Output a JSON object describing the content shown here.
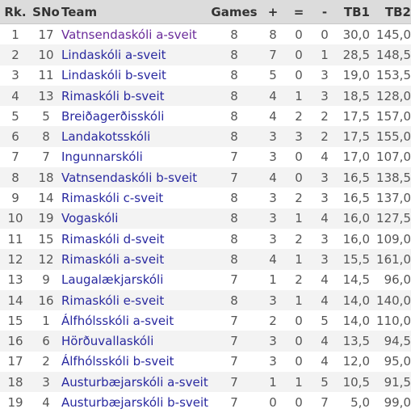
{
  "columns": {
    "rank": "Rk.",
    "sno": "SNo",
    "team": "Team",
    "games": "Games",
    "wins": "+",
    "draws": "=",
    "losses": "-",
    "tb1": "TB1",
    "tb2": "TB2"
  },
  "rows": [
    {
      "rank": "1",
      "sno": "17",
      "team": "Vatnsendaskóli a-sveit",
      "games": "8",
      "wins": "8",
      "draws": "0",
      "losses": "0",
      "tb1": "30,0",
      "tb2": "145,0"
    },
    {
      "rank": "2",
      "sno": "10",
      "team": "Lindaskóli a-sveit",
      "games": "8",
      "wins": "7",
      "draws": "0",
      "losses": "1",
      "tb1": "28,5",
      "tb2": "148,5"
    },
    {
      "rank": "3",
      "sno": "11",
      "team": "Lindaskóli b-sveit",
      "games": "8",
      "wins": "5",
      "draws": "0",
      "losses": "3",
      "tb1": "19,0",
      "tb2": "153,5"
    },
    {
      "rank": "4",
      "sno": "13",
      "team": "Rimaskóli b-sveit",
      "games": "8",
      "wins": "4",
      "draws": "1",
      "losses": "3",
      "tb1": "18,5",
      "tb2": "128,0"
    },
    {
      "rank": "5",
      "sno": "5",
      "team": "Breiðagerðisskóli",
      "games": "8",
      "wins": "4",
      "draws": "2",
      "losses": "2",
      "tb1": "17,5",
      "tb2": "157,0"
    },
    {
      "rank": "6",
      "sno": "8",
      "team": "Landakotsskóli",
      "games": "8",
      "wins": "3",
      "draws": "3",
      "losses": "2",
      "tb1": "17,5",
      "tb2": "155,0"
    },
    {
      "rank": "7",
      "sno": "7",
      "team": "Ingunnarskóli",
      "games": "7",
      "wins": "3",
      "draws": "0",
      "losses": "4",
      "tb1": "17,0",
      "tb2": "107,0"
    },
    {
      "rank": "8",
      "sno": "18",
      "team": "Vatnsendaskóli b-sveit",
      "games": "7",
      "wins": "4",
      "draws": "0",
      "losses": "3",
      "tb1": "16,5",
      "tb2": "138,5"
    },
    {
      "rank": "9",
      "sno": "14",
      "team": "Rimaskóli c-sveit",
      "games": "8",
      "wins": "3",
      "draws": "2",
      "losses": "3",
      "tb1": "16,5",
      "tb2": "137,0"
    },
    {
      "rank": "10",
      "sno": "19",
      "team": "Vogaskóli",
      "games": "8",
      "wins": "3",
      "draws": "1",
      "losses": "4",
      "tb1": "16,0",
      "tb2": "127,5"
    },
    {
      "rank": "11",
      "sno": "15",
      "team": "Rimaskóli d-sveit",
      "games": "8",
      "wins": "3",
      "draws": "2",
      "losses": "3",
      "tb1": "16,0",
      "tb2": "109,0"
    },
    {
      "rank": "12",
      "sno": "12",
      "team": "Rimaskóli a-sveit",
      "games": "8",
      "wins": "4",
      "draws": "1",
      "losses": "3",
      "tb1": "15,5",
      "tb2": "161,0"
    },
    {
      "rank": "13",
      "sno": "9",
      "team": "Laugalækjarskóli",
      "games": "7",
      "wins": "1",
      "draws": "2",
      "losses": "4",
      "tb1": "14,5",
      "tb2": "96,0"
    },
    {
      "rank": "14",
      "sno": "16",
      "team": "Rimaskóli e-sveit",
      "games": "8",
      "wins": "3",
      "draws": "1",
      "losses": "4",
      "tb1": "14,0",
      "tb2": "140,0"
    },
    {
      "rank": "15",
      "sno": "1",
      "team": "Álfhólsskóli a-sveit",
      "games": "7",
      "wins": "2",
      "draws": "0",
      "losses": "5",
      "tb1": "14,0",
      "tb2": "110,0"
    },
    {
      "rank": "16",
      "sno": "6",
      "team": "Hörðuvallaskóli",
      "games": "7",
      "wins": "3",
      "draws": "0",
      "losses": "4",
      "tb1": "13,5",
      "tb2": "94,5"
    },
    {
      "rank": "17",
      "sno": "2",
      "team": "Álfhólsskóli b-sveit",
      "games": "7",
      "wins": "3",
      "draws": "0",
      "losses": "4",
      "tb1": "12,0",
      "tb2": "95,0"
    },
    {
      "rank": "18",
      "sno": "3",
      "team": "Austurbæjarskóli a-sveit",
      "games": "7",
      "wins": "1",
      "draws": "1",
      "losses": "5",
      "tb1": "10,5",
      "tb2": "91,5"
    },
    {
      "rank": "19",
      "sno": "4",
      "team": "Austurbæjarskóli b-sveit",
      "games": "7",
      "wins": "0",
      "draws": "0",
      "losses": "7",
      "tb1": "5,0",
      "tb2": "99,0"
    }
  ]
}
